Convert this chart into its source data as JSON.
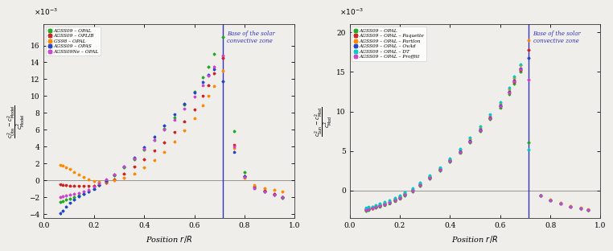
{
  "fig_bg": "#f0eeea",
  "left_panel": {
    "series": [
      {
        "label": "AGSS09 – OPAL",
        "color": "#22aa22",
        "x": [
          0.065,
          0.075,
          0.09,
          0.105,
          0.12,
          0.14,
          0.16,
          0.18,
          0.2,
          0.22,
          0.25,
          0.28,
          0.32,
          0.36,
          0.4,
          0.44,
          0.48,
          0.52,
          0.56,
          0.6,
          0.635,
          0.655,
          0.68,
          0.713,
          0.76,
          0.8,
          0.84,
          0.88,
          0.92,
          0.95
        ],
        "y": [
          -2.6,
          -2.5,
          -2.3,
          -2.2,
          -2.0,
          -1.8,
          -1.6,
          -1.3,
          -1.0,
          -0.6,
          -0.1,
          0.6,
          1.5,
          2.5,
          3.6,
          4.8,
          6.1,
          7.5,
          9.0,
          10.5,
          12.2,
          13.5,
          15.0,
          17.0,
          5.8,
          1.0,
          -0.8,
          -1.3,
          -1.7,
          -2.1
        ],
        "xerr": 0.006,
        "yerr": [
          0.18,
          0.18,
          0.18,
          0.18,
          0.18,
          0.18,
          0.18,
          0.18,
          0.18,
          0.18,
          0.18,
          0.18,
          0.18,
          0.18,
          0.18,
          0.18,
          0.18,
          0.18,
          0.18,
          0.18,
          0.18,
          0.18,
          0.18,
          0.2,
          0.18,
          0.18,
          0.18,
          0.18,
          0.18,
          0.18
        ]
      },
      {
        "label": "AGSS09 – OPLIB",
        "color": "#cc2222",
        "x": [
          0.065,
          0.075,
          0.09,
          0.105,
          0.12,
          0.14,
          0.16,
          0.18,
          0.2,
          0.22,
          0.25,
          0.28,
          0.32,
          0.36,
          0.4,
          0.44,
          0.48,
          0.52,
          0.56,
          0.6,
          0.635,
          0.655,
          0.68,
          0.713,
          0.76,
          0.8,
          0.84,
          0.88,
          0.92,
          0.95
        ],
        "y": [
          -0.5,
          -0.55,
          -0.6,
          -0.65,
          -0.65,
          -0.7,
          -0.7,
          -0.7,
          -0.65,
          -0.55,
          -0.3,
          0.1,
          0.8,
          1.6,
          2.5,
          3.5,
          4.5,
          5.7,
          7.0,
          8.4,
          10.0,
          11.3,
          12.7,
          14.5,
          4.2,
          0.5,
          -0.8,
          -1.2,
          -1.6,
          -2.0
        ],
        "xerr": 0.006,
        "yerr": 0.15
      },
      {
        "label": "GS98 – OPAL",
        "color": "#ff8800",
        "x": [
          0.065,
          0.075,
          0.09,
          0.105,
          0.12,
          0.14,
          0.16,
          0.18,
          0.2,
          0.22,
          0.25,
          0.28,
          0.32,
          0.36,
          0.4,
          0.44,
          0.48,
          0.52,
          0.56,
          0.6,
          0.635,
          0.655,
          0.68,
          0.713,
          0.76,
          0.8,
          0.84,
          0.88,
          0.92,
          0.95
        ],
        "y": [
          1.8,
          1.75,
          1.5,
          1.3,
          1.0,
          0.7,
          0.35,
          0.1,
          -0.1,
          -0.2,
          -0.15,
          0.0,
          0.3,
          0.8,
          1.5,
          2.4,
          3.4,
          4.6,
          5.9,
          7.4,
          8.9,
          10.0,
          11.2,
          13.0,
          3.8,
          0.3,
          -0.6,
          -0.9,
          -1.1,
          -1.35
        ],
        "xerr": 0.006,
        "yerr": 0.15
      },
      {
        "label": "AGSS09 – OPAS",
        "color": "#2244cc",
        "x": [
          0.065,
          0.075,
          0.09,
          0.105,
          0.12,
          0.14,
          0.16,
          0.18,
          0.2,
          0.22,
          0.25,
          0.28,
          0.32,
          0.36,
          0.4,
          0.44,
          0.48,
          0.52,
          0.56,
          0.6,
          0.635,
          0.655,
          0.68,
          0.713,
          0.76,
          0.8,
          0.84,
          0.88,
          0.92,
          0.95
        ],
        "y": [
          -3.9,
          -3.6,
          -3.1,
          -2.7,
          -2.3,
          -1.9,
          -1.6,
          -1.3,
          -1.0,
          -0.6,
          -0.05,
          0.65,
          1.6,
          2.7,
          3.9,
          5.2,
          6.5,
          7.8,
          9.1,
          10.4,
          11.7,
          12.5,
          13.2,
          11.8,
          3.4,
          0.5,
          -0.9,
          -1.3,
          -1.7,
          -2.0
        ],
        "xerr": 0.006,
        "yerr": 0.18
      },
      {
        "label": "AGSS09Ne – OPAL",
        "color": "#cc44cc",
        "x": [
          0.065,
          0.075,
          0.09,
          0.105,
          0.12,
          0.14,
          0.16,
          0.18,
          0.2,
          0.22,
          0.25,
          0.28,
          0.32,
          0.36,
          0.4,
          0.44,
          0.48,
          0.52,
          0.56,
          0.6,
          0.635,
          0.655,
          0.68,
          0.713,
          0.76,
          0.8,
          0.84,
          0.88,
          0.92,
          0.95
        ],
        "y": [
          -2.0,
          -1.9,
          -1.8,
          -1.7,
          -1.6,
          -1.5,
          -1.3,
          -1.1,
          -0.8,
          -0.4,
          0.1,
          0.7,
          1.6,
          2.6,
          3.7,
          4.8,
          6.0,
          7.2,
          8.5,
          9.9,
          11.3,
          12.4,
          13.5,
          14.8,
          4.0,
          0.4,
          -0.9,
          -1.3,
          -1.7,
          -2.0
        ],
        "xerr": 0.006,
        "yerr": 0.15
      }
    ],
    "xlim": [
      0.0,
      1.0
    ],
    "ylim": [
      -4.5,
      18.5
    ],
    "yticks": [
      -4,
      -2,
      0,
      2,
      4,
      6,
      8,
      10,
      12,
      14,
      16
    ],
    "xticks": [
      0,
      0.2,
      0.4,
      0.6,
      0.8,
      1.0
    ],
    "vline_x": 0.713,
    "vline_color": "#3333bb",
    "vline_label": "Base of the solar\nconvective zone",
    "xlabel": "Position $r/R$",
    "scale_label": "$\\times 10^{-3}$"
  },
  "right_panel": {
    "series": [
      {
        "label": "AGSS09 – OPAL",
        "color": "#22aa22",
        "x": [
          0.065,
          0.075,
          0.09,
          0.105,
          0.12,
          0.14,
          0.16,
          0.18,
          0.2,
          0.22,
          0.25,
          0.28,
          0.32,
          0.36,
          0.4,
          0.44,
          0.48,
          0.52,
          0.56,
          0.6,
          0.635,
          0.655,
          0.68,
          0.713,
          0.76,
          0.8,
          0.84,
          0.88,
          0.92,
          0.95
        ],
        "y": [
          -2.6,
          -2.5,
          -2.3,
          -2.2,
          -2.0,
          -1.8,
          -1.6,
          -1.3,
          -1.0,
          -0.6,
          -0.1,
          0.6,
          1.5,
          2.5,
          3.6,
          4.8,
          6.1,
          7.5,
          9.0,
          10.5,
          12.2,
          13.5,
          15.0,
          6.1,
          -0.6,
          -1.2,
          -1.6,
          -2.0,
          -2.3,
          -2.5
        ],
        "xerr": 0.006,
        "yerr": 0.18
      },
      {
        "label": "AGSS09 – OPAL – Paquette",
        "color": "#cc2222",
        "x": [
          0.065,
          0.075,
          0.09,
          0.105,
          0.12,
          0.14,
          0.16,
          0.18,
          0.2,
          0.22,
          0.25,
          0.28,
          0.32,
          0.36,
          0.4,
          0.44,
          0.48,
          0.52,
          0.56,
          0.6,
          0.635,
          0.655,
          0.68,
          0.713,
          0.76,
          0.8,
          0.84,
          0.88,
          0.92,
          0.95
        ],
        "y": [
          -2.5,
          -2.4,
          -2.3,
          -2.1,
          -1.9,
          -1.7,
          -1.5,
          -1.2,
          -0.9,
          -0.5,
          0.0,
          0.7,
          1.6,
          2.6,
          3.7,
          4.9,
          6.2,
          7.6,
          9.1,
          10.7,
          12.4,
          13.7,
          15.2,
          17.8,
          -0.6,
          -1.2,
          -1.6,
          -2.0,
          -2.3,
          -2.5
        ],
        "xerr": 0.006,
        "yerr": 0.18
      },
      {
        "label": "AGSS09 – OPAL – PartIon",
        "color": "#ff8800",
        "x": [
          0.065,
          0.075,
          0.09,
          0.105,
          0.12,
          0.14,
          0.16,
          0.18,
          0.2,
          0.22,
          0.25,
          0.28,
          0.32,
          0.36,
          0.4,
          0.44,
          0.48,
          0.52,
          0.56,
          0.6,
          0.635,
          0.655,
          0.68,
          0.713,
          0.76,
          0.8,
          0.84,
          0.88,
          0.92,
          0.95
        ],
        "y": [
          -2.3,
          -2.2,
          -2.1,
          -1.9,
          -1.7,
          -1.5,
          -1.3,
          -1.0,
          -0.7,
          -0.3,
          0.2,
          0.9,
          1.8,
          2.8,
          4.0,
          5.2,
          6.5,
          7.9,
          9.4,
          11.0,
          12.8,
          14.2,
          15.8,
          19.0,
          -0.6,
          -1.1,
          -1.5,
          -1.9,
          -2.2,
          -2.4
        ],
        "xerr": 0.006,
        "yerr": 0.18
      },
      {
        "label": "AGSS09 – OPAL – OvAd",
        "color": "#2244cc",
        "x": [
          0.065,
          0.075,
          0.09,
          0.105,
          0.12,
          0.14,
          0.16,
          0.18,
          0.2,
          0.22,
          0.25,
          0.28,
          0.32,
          0.36,
          0.4,
          0.44,
          0.48,
          0.52,
          0.56,
          0.6,
          0.635,
          0.655,
          0.68,
          0.713,
          0.76,
          0.8,
          0.84,
          0.88,
          0.92,
          0.95
        ],
        "y": [
          -2.4,
          -2.3,
          -2.2,
          -2.0,
          -1.8,
          -1.6,
          -1.4,
          -1.1,
          -0.8,
          -0.4,
          0.1,
          0.8,
          1.7,
          2.7,
          3.8,
          5.0,
          6.3,
          7.7,
          9.2,
          10.8,
          12.5,
          13.9,
          15.4,
          16.8,
          -0.6,
          -1.2,
          -1.6,
          -2.0,
          -2.3,
          -2.5
        ],
        "xerr": 0.006,
        "yerr": 0.18
      },
      {
        "label": "AGSS09 – OPAL – DT",
        "color": "#00cccc",
        "x": [
          0.065,
          0.075,
          0.09,
          0.105,
          0.12,
          0.14,
          0.16,
          0.18,
          0.2,
          0.22,
          0.25,
          0.28,
          0.32,
          0.36,
          0.4,
          0.44,
          0.48,
          0.52,
          0.56,
          0.6,
          0.635,
          0.655,
          0.68,
          0.713,
          0.76,
          0.8,
          0.84,
          0.88,
          0.92,
          0.95
        ],
        "y": [
          -2.2,
          -2.1,
          -2.0,
          -1.8,
          -1.6,
          -1.4,
          -1.2,
          -0.9,
          -0.6,
          -0.2,
          0.3,
          1.0,
          1.9,
          2.9,
          4.1,
          5.3,
          6.7,
          8.1,
          9.6,
          11.2,
          13.0,
          14.4,
          16.0,
          5.2,
          -0.6,
          -1.2,
          -1.6,
          -2.0,
          -2.3,
          -2.5
        ],
        "xerr": 0.006,
        "yerr": 0.18
      },
      {
        "label": "AGSS09 – OPAL – Proffitt",
        "color": "#cc44cc",
        "x": [
          0.065,
          0.075,
          0.09,
          0.105,
          0.12,
          0.14,
          0.16,
          0.18,
          0.2,
          0.22,
          0.25,
          0.28,
          0.32,
          0.36,
          0.4,
          0.44,
          0.48,
          0.52,
          0.56,
          0.6,
          0.635,
          0.655,
          0.68,
          0.713,
          0.76,
          0.8,
          0.84,
          0.88,
          0.92,
          0.95
        ],
        "y": [
          -2.5,
          -2.4,
          -2.3,
          -2.1,
          -1.9,
          -1.7,
          -1.5,
          -1.2,
          -0.9,
          -0.5,
          0.0,
          0.7,
          1.6,
          2.6,
          3.7,
          4.9,
          6.2,
          7.6,
          9.1,
          10.7,
          12.4,
          13.8,
          15.3,
          14.0,
          -0.6,
          -1.2,
          -1.6,
          -2.0,
          -2.3,
          -2.5
        ],
        "xerr": 0.006,
        "yerr": 0.18
      }
    ],
    "xlim": [
      0.0,
      1.0
    ],
    "ylim": [
      -3.5,
      21.0
    ],
    "yticks": [
      0,
      5,
      10,
      15,
      20
    ],
    "xticks": [
      0,
      0.2,
      0.4,
      0.6,
      0.8,
      1.0
    ],
    "vline_x": 0.713,
    "vline_color": "#3333bb",
    "vline_label": "Base of the solar\nconvective zone",
    "xlabel": "Position $r/R$",
    "scale_label": "$\\times 10^{-3}$"
  }
}
